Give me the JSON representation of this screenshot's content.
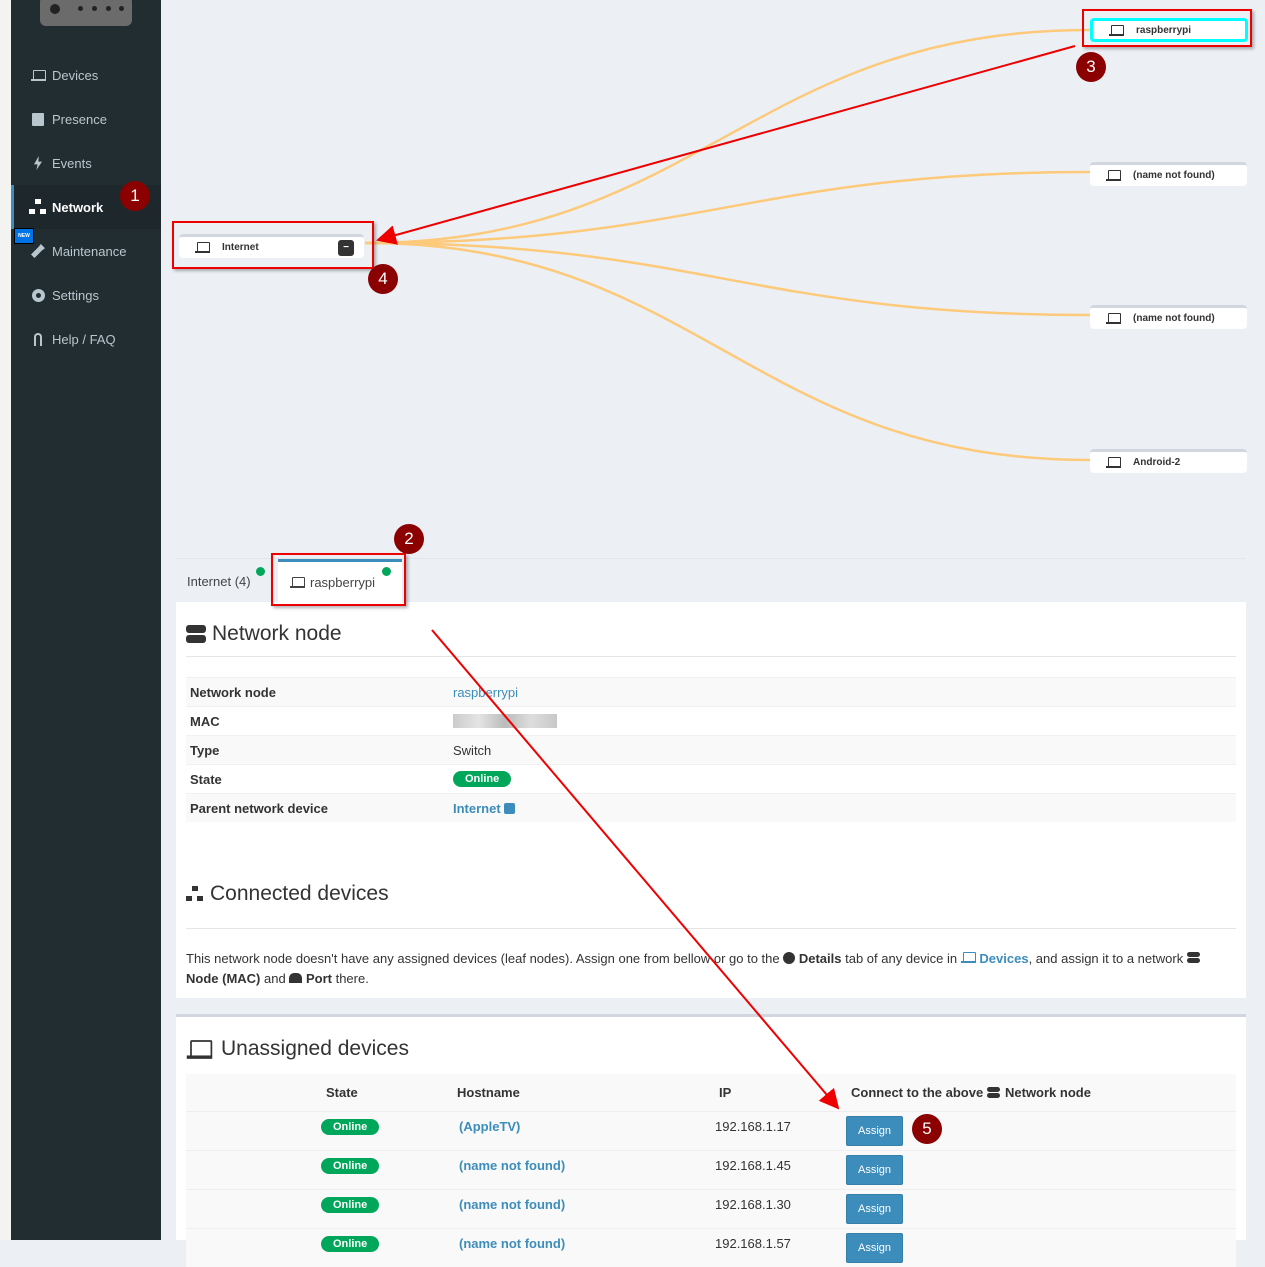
{
  "sidebar": {
    "items": [
      {
        "label": "Devices",
        "icon": "laptop-icon"
      },
      {
        "label": "Presence",
        "icon": "calendar-icon"
      },
      {
        "label": "Events",
        "icon": "bolt-icon"
      },
      {
        "label": "Network",
        "icon": "sitemap-icon",
        "active": true
      },
      {
        "label": "Maintenance",
        "icon": "wrench-icon",
        "badge": "NEW"
      },
      {
        "label": "Settings",
        "icon": "gear-icon"
      },
      {
        "label": "Help / FAQ",
        "icon": "question-icon"
      }
    ]
  },
  "graph": {
    "root": {
      "label": "Internet",
      "collapse": "−"
    },
    "children": [
      "raspberrypi",
      "(name not found)",
      "(name not found)",
      "Android-2"
    ],
    "link_color": "#fdc97a",
    "highlight_color": "#00ffff"
  },
  "tabs": [
    {
      "label": "Internet (4)"
    },
    {
      "label": "raspberrypi",
      "active": true
    }
  ],
  "node": {
    "title": "Network node",
    "rows": [
      {
        "key": "Network node",
        "value": "raspberrypi"
      },
      {
        "key": "MAC",
        "value": ""
      },
      {
        "key": "Type",
        "value": "Switch"
      },
      {
        "key": "State",
        "value": "Online"
      },
      {
        "key": "Parent network device",
        "value": "Internet"
      }
    ]
  },
  "connected": {
    "title": "Connected devices",
    "text1": "This network node doesn't have any assigned devices (leaf nodes). Assign one from bellow or go to the",
    "details": "Details",
    "text2": "tab of any device in",
    "devices": "Devices",
    "text3": ", and assign it to a network",
    "node_mac": "Node (MAC)",
    "and": "and",
    "port": "Port",
    "there": "there."
  },
  "unassigned": {
    "title": "Unassigned devices",
    "columns": [
      "State",
      "Hostname",
      "IP",
      "Connect to the above",
      "Network node"
    ],
    "rows": [
      {
        "state": "Online",
        "hostname": "(AppleTV)",
        "ip": "192.168.1.17",
        "action": "Assign"
      },
      {
        "state": "Online",
        "hostname": "(name not found)",
        "ip": "192.168.1.45",
        "action": "Assign"
      },
      {
        "state": "Online",
        "hostname": "(name not found)",
        "ip": "192.168.1.30",
        "action": "Assign"
      },
      {
        "state": "Online",
        "hostname": "(name not found)",
        "ip": "192.168.1.57",
        "action": "Assign"
      }
    ]
  },
  "annotations": [
    "1",
    "2",
    "3",
    "4",
    "5"
  ]
}
